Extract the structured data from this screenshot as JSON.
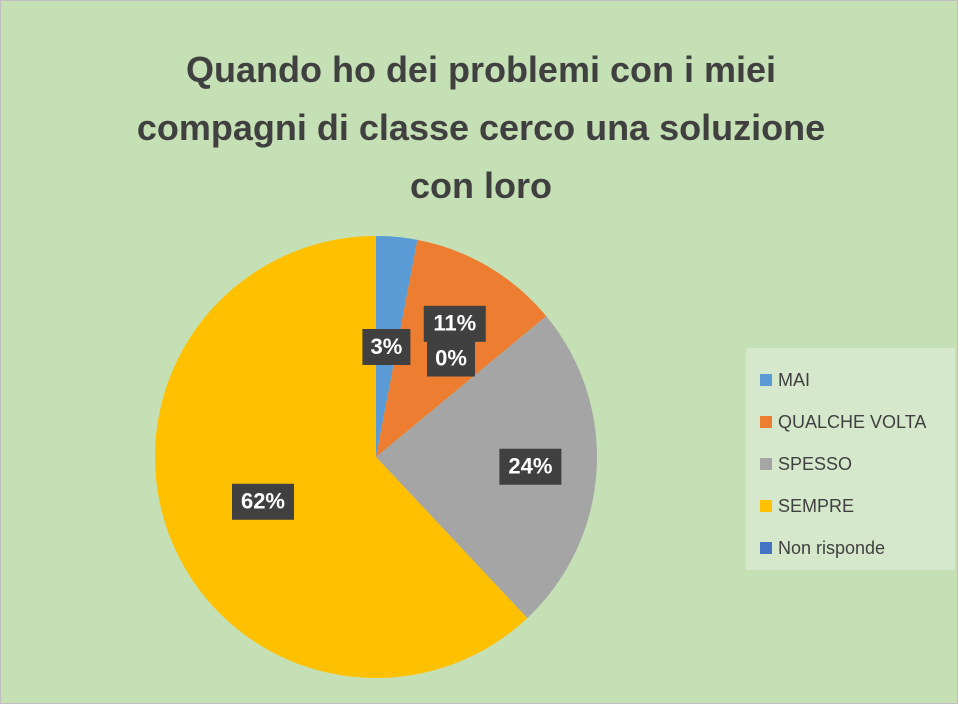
{
  "chart_data": {
    "type": "pie",
    "title": "Quando ho dei problemi con i miei compagni di classe cerco una soluzione con loro",
    "categories": [
      "MAI",
      "QUALCHE VOLTA",
      "SPESSO",
      "SEMPRE",
      "Non risponde"
    ],
    "values": [
      3,
      11,
      24,
      62,
      0
    ],
    "value_labels": [
      "3%",
      "11%",
      "24%",
      "62%",
      "0%"
    ],
    "colors": [
      "#5b9bd5",
      "#ed7d31",
      "#a5a5a5",
      "#ffc000",
      "#4472c4"
    ],
    "legend": "right"
  }
}
